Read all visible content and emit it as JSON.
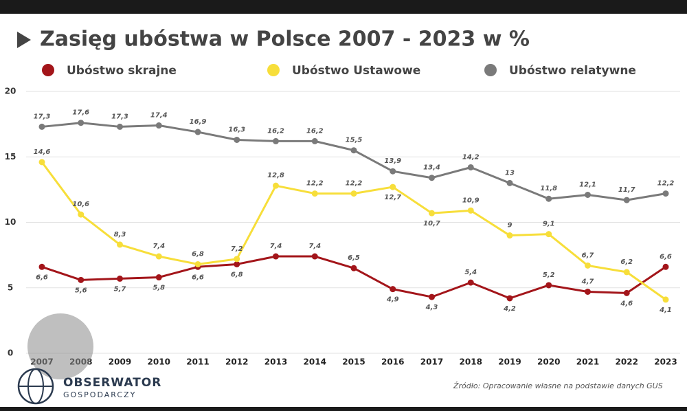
{
  "chart_data": {
    "type": "line",
    "title": "Zasięg ubóstwa w Polsce 2007 - 2023 w %",
    "categories": [
      "2007",
      "2008",
      "2009",
      "2010",
      "2011",
      "2012",
      "2013",
      "2014",
      "2015",
      "2016",
      "2017",
      "2018",
      "2019",
      "2020",
      "2021",
      "2022",
      "2023"
    ],
    "series": [
      {
        "name": "Ubóstwo skrajne",
        "color": "#a3151a",
        "values": [
          6.6,
          5.6,
          5.7,
          5.8,
          6.6,
          6.8,
          7.4,
          7.4,
          6.5,
          4.9,
          4.3,
          5.4,
          4.2,
          5.2,
          4.7,
          4.6,
          6.6
        ],
        "value_labels": [
          "6,6",
          "5,6",
          "5,7",
          "5,8",
          "6,6",
          "6,8",
          "7,4",
          "7,4",
          "6,5",
          "4,9",
          "4,3",
          "5,4",
          "4,2",
          "5,2",
          "4,7",
          "4,6",
          "6,6"
        ]
      },
      {
        "name": "Ubóstwo Ustawowe",
        "color": "#f7de3a",
        "values": [
          14.6,
          10.6,
          8.3,
          7.4,
          6.8,
          7.2,
          12.8,
          12.2,
          12.2,
          12.7,
          10.7,
          10.9,
          9,
          9.1,
          6.7,
          6.2,
          4.1
        ],
        "value_labels": [
          "14,6",
          "10,6",
          "8,3",
          "7,4",
          "6,8",
          "7,2",
          "12,8",
          "12,2",
          "12,2",
          "12,7",
          "10,7",
          "10,9",
          "9",
          "9,1",
          "6,7",
          "6,2",
          "4,1"
        ]
      },
      {
        "name": "Ubóstwo relatywne",
        "color": "#7a7a7a",
        "values": [
          17.3,
          17.6,
          17.3,
          17.4,
          16.9,
          16.3,
          16.2,
          16.2,
          15.5,
          13.9,
          13.4,
          14.2,
          13,
          11.8,
          12.1,
          11.7,
          12.2
        ],
        "value_labels": [
          "17,3",
          "17,6",
          "17,3",
          "17,4",
          "16,9",
          "16,3",
          "16,2",
          "16,2",
          "15,5",
          "13,9",
          "13,4",
          "14,2",
          "13",
          "11,8",
          "12,1",
          "11,7",
          "12,2"
        ]
      }
    ],
    "ylim": [
      0,
      20
    ],
    "yticks": [
      0,
      5,
      10,
      15,
      20
    ],
    "grid": true,
    "source": "Źródło: Opracowanie własne na podstawie danych GUS",
    "logo": {
      "name": "OBSERWATOR",
      "subname": "GOSPODARCZY"
    }
  }
}
